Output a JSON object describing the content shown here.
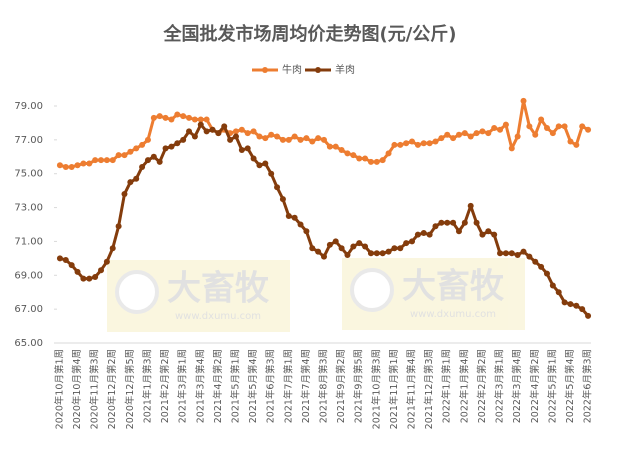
{
  "chart_data": {
    "type": "line",
    "title": "全国批发市场周均价走势图(元/公斤)",
    "categories": [
      "2020年10月第1周",
      null,
      null,
      "2020年10月第4周",
      null,
      null,
      "2020年11月第3周",
      null,
      null,
      "2020年12月第2周",
      null,
      null,
      "2020年12月第5周",
      null,
      null,
      "2021年1月第3周",
      null,
      null,
      "2021年2月第2周",
      null,
      null,
      "2021年3月第1周",
      null,
      null,
      "2021年3月第4周",
      null,
      null,
      "2021年4月第2周",
      null,
      null,
      "2021年5月第1周",
      null,
      null,
      "2021年5月第4周",
      null,
      null,
      "2021年6月第3周",
      null,
      null,
      "2021年7月第1周",
      null,
      null,
      "2021年7月第4周",
      null,
      null,
      "2021年8月第3周",
      null,
      null,
      "2021年9月第2周",
      null,
      null,
      "2021年9月第5周",
      null,
      null,
      "2021年10月第3周",
      null,
      null,
      "2021年11月第1周",
      null,
      null,
      "2021年11月第4周",
      null,
      null,
      "2021年12月第3周",
      null,
      null,
      "2022年1月第1周",
      null,
      null,
      "2022年1月第4周",
      null,
      null,
      "2022年2月第2周",
      null,
      null,
      "2022年3月第1周",
      null,
      null,
      "2022年3月第4周",
      null,
      null,
      "2022年4月第2周",
      null,
      null,
      "2022年5月第1周",
      null,
      null,
      "2022年5月第4周",
      null,
      null,
      "2022年6月第3周"
    ],
    "series": [
      {
        "name": "牛肉",
        "color": "#ED7D31",
        "values": [
          75.5,
          75.4,
          75.4,
          75.5,
          75.6,
          75.6,
          75.8,
          75.8,
          75.8,
          75.8,
          76.1,
          76.1,
          76.3,
          76.5,
          76.7,
          77.0,
          78.3,
          78.4,
          78.3,
          78.2,
          78.5,
          78.4,
          78.3,
          78.2,
          78.2,
          78.2,
          77.6,
          77.4,
          77.6,
          77.4,
          77.5,
          77.6,
          77.4,
          77.5,
          77.2,
          77.1,
          77.3,
          77.2,
          77.0,
          77.0,
          77.2,
          77.0,
          77.1,
          76.9,
          77.1,
          77.0,
          76.6,
          76.6,
          76.4,
          76.2,
          76.1,
          75.9,
          75.9,
          75.7,
          75.7,
          75.8,
          76.2,
          76.7,
          76.7,
          76.8,
          76.9,
          76.7,
          76.8,
          76.8,
          76.9,
          77.1,
          77.3,
          77.1,
          77.3,
          77.4,
          77.2,
          77.4,
          77.5,
          77.4,
          77.7,
          77.6,
          77.9,
          76.5,
          77.2,
          79.3,
          77.8,
          77.3,
          78.2,
          77.7,
          77.4,
          77.8,
          77.8,
          76.9,
          76.7,
          77.8,
          77.6
        ]
      },
      {
        "name": "羊肉",
        "color": "#843C0C",
        "values": [
          70.0,
          69.9,
          69.6,
          69.2,
          68.8,
          68.8,
          68.9,
          69.3,
          69.8,
          70.6,
          71.9,
          73.8,
          74.5,
          74.7,
          75.4,
          75.8,
          76.0,
          75.7,
          76.5,
          76.6,
          76.8,
          77.0,
          77.5,
          77.2,
          77.9,
          77.5,
          77.6,
          77.4,
          77.8,
          77.0,
          77.2,
          76.4,
          76.5,
          75.9,
          75.5,
          75.6,
          75.0,
          74.2,
          73.5,
          72.5,
          72.4,
          72.0,
          71.6,
          70.6,
          70.4,
          70.1,
          70.8,
          71.0,
          70.6,
          70.2,
          70.7,
          70.9,
          70.7,
          70.3,
          70.3,
          70.3,
          70.4,
          70.6,
          70.6,
          70.9,
          71.0,
          71.4,
          71.5,
          71.4,
          71.9,
          72.1,
          72.1,
          72.1,
          71.6,
          72.1,
          73.1,
          72.1,
          71.4,
          71.6,
          71.4,
          70.3,
          70.3,
          70.3,
          70.2,
          70.4,
          70.1,
          69.8,
          69.5,
          69.1,
          68.4,
          68.0,
          67.4,
          67.3,
          67.2,
          67.0,
          66.6
        ]
      }
    ],
    "ylim": [
      65,
      79
    ],
    "yticks": [
      {
        "value": 65,
        "label": "65.00"
      },
      {
        "value": 67,
        "label": "67.00"
      },
      {
        "value": 69,
        "label": "69.00"
      },
      {
        "value": 71,
        "label": "71.00"
      },
      {
        "value": 73,
        "label": "73.00"
      },
      {
        "value": 75,
        "label": "75.00"
      },
      {
        "value": 77,
        "label": "77.00"
      },
      {
        "value": 79,
        "label": "79.00"
      }
    ],
    "legend": "top",
    "watermark": {
      "brand": "大畜牧",
      "url": "www.dxumu.com"
    }
  }
}
